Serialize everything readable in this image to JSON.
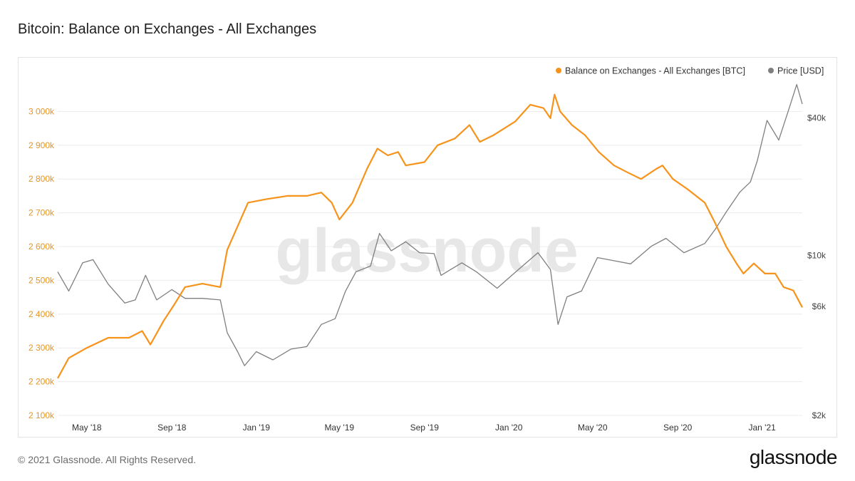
{
  "header": {
    "title": "Bitcoin: Balance on Exchanges - All Exchanges"
  },
  "footer": {
    "copyright": "© 2021 Glassnode. All Rights Reserved.",
    "logo": "glassnode"
  },
  "watermark": "glassnode",
  "colors": {
    "balance": "#f7931a",
    "price": "#7f7f7f",
    "grid": "#ececec",
    "left_axis_text": "#e8931e",
    "right_axis_text": "#444444"
  },
  "chart_data": {
    "type": "line",
    "title": "Bitcoin: Balance on Exchanges - All Exchanges",
    "legend_position": "top-right",
    "grid": true,
    "x_range": [
      "2018-03-20",
      "2021-02-28"
    ],
    "x_ticks": [
      {
        "label": "May '18",
        "date": "2018-05-01"
      },
      {
        "label": "Sep '18",
        "date": "2018-09-01"
      },
      {
        "label": "Jan '19",
        "date": "2019-01-01"
      },
      {
        "label": "May '19",
        "date": "2019-05-01"
      },
      {
        "label": "Sep '19",
        "date": "2019-09-01"
      },
      {
        "label": "Jan '20",
        "date": "2020-01-01"
      },
      {
        "label": "May '20",
        "date": "2020-05-01"
      },
      {
        "label": "Sep '20",
        "date": "2020-09-01"
      },
      {
        "label": "Jan '21",
        "date": "2021-01-01"
      }
    ],
    "y_left": {
      "range": [
        2100000,
        3100000
      ],
      "ticks": [
        {
          "label": "2 100k",
          "value": 2100000
        },
        {
          "label": "2 200k",
          "value": 2200000
        },
        {
          "label": "2 300k",
          "value": 2300000
        },
        {
          "label": "2 400k",
          "value": 2400000
        },
        {
          "label": "2 500k",
          "value": 2500000
        },
        {
          "label": "2 600k",
          "value": 2600000
        },
        {
          "label": "2 700k",
          "value": 2700000
        },
        {
          "label": "2 800k",
          "value": 2800000
        },
        {
          "label": "2 900k",
          "value": 2900000
        },
        {
          "label": "3 000k",
          "value": 3000000
        }
      ]
    },
    "y_right": {
      "scale": "log",
      "range": [
        2000,
        60000
      ],
      "ticks": [
        {
          "label": "$2k",
          "value": 2000
        },
        {
          "label": "$6k",
          "value": 6000
        },
        {
          "label": "$10k",
          "value": 10000
        },
        {
          "label": "$40k",
          "value": 40000
        }
      ]
    },
    "series": [
      {
        "name": "Balance on Exchanges - All Exchanges [BTC]",
        "axis": "left",
        "points": [
          [
            "2018-03-20",
            2210000
          ],
          [
            "2018-04-05",
            2270000
          ],
          [
            "2018-05-01",
            2300000
          ],
          [
            "2018-06-01",
            2330000
          ],
          [
            "2018-07-01",
            2330000
          ],
          [
            "2018-07-20",
            2350000
          ],
          [
            "2018-08-01",
            2310000
          ],
          [
            "2018-08-20",
            2380000
          ],
          [
            "2018-09-05",
            2430000
          ],
          [
            "2018-09-20",
            2480000
          ],
          [
            "2018-10-15",
            2490000
          ],
          [
            "2018-11-10",
            2480000
          ],
          [
            "2018-11-20",
            2590000
          ],
          [
            "2018-12-05",
            2660000
          ],
          [
            "2018-12-20",
            2730000
          ],
          [
            "2019-01-15",
            2740000
          ],
          [
            "2019-02-15",
            2750000
          ],
          [
            "2019-03-15",
            2750000
          ],
          [
            "2019-04-05",
            2760000
          ],
          [
            "2019-04-20",
            2730000
          ],
          [
            "2019-05-01",
            2680000
          ],
          [
            "2019-05-20",
            2730000
          ],
          [
            "2019-06-10",
            2830000
          ],
          [
            "2019-06-25",
            2890000
          ],
          [
            "2019-07-10",
            2870000
          ],
          [
            "2019-07-25",
            2880000
          ],
          [
            "2019-08-05",
            2840000
          ],
          [
            "2019-09-01",
            2850000
          ],
          [
            "2019-09-20",
            2900000
          ],
          [
            "2019-10-15",
            2920000
          ],
          [
            "2019-11-05",
            2960000
          ],
          [
            "2019-11-20",
            2910000
          ],
          [
            "2019-12-10",
            2930000
          ],
          [
            "2020-01-10",
            2970000
          ],
          [
            "2020-02-01",
            3020000
          ],
          [
            "2020-02-20",
            3010000
          ],
          [
            "2020-03-01",
            2980000
          ],
          [
            "2020-03-07",
            3050000
          ],
          [
            "2020-03-15",
            3000000
          ],
          [
            "2020-04-01",
            2960000
          ],
          [
            "2020-04-20",
            2930000
          ],
          [
            "2020-05-10",
            2880000
          ],
          [
            "2020-06-01",
            2840000
          ],
          [
            "2020-06-20",
            2820000
          ],
          [
            "2020-07-10",
            2800000
          ],
          [
            "2020-08-01",
            2830000
          ],
          [
            "2020-08-10",
            2840000
          ],
          [
            "2020-08-25",
            2800000
          ],
          [
            "2020-09-15",
            2770000
          ],
          [
            "2020-10-10",
            2730000
          ],
          [
            "2020-10-25",
            2670000
          ],
          [
            "2020-11-10",
            2600000
          ],
          [
            "2020-11-25",
            2550000
          ],
          [
            "2020-12-05",
            2520000
          ],
          [
            "2020-12-20",
            2550000
          ],
          [
            "2021-01-05",
            2520000
          ],
          [
            "2021-01-20",
            2520000
          ],
          [
            "2021-02-01",
            2480000
          ],
          [
            "2021-02-15",
            2470000
          ],
          [
            "2021-02-28",
            2420000
          ]
        ]
      },
      {
        "name": "Price [USD]",
        "axis": "right",
        "points": [
          [
            "2018-03-20",
            8500
          ],
          [
            "2018-04-05",
            7000
          ],
          [
            "2018-04-25",
            9300
          ],
          [
            "2018-05-10",
            9600
          ],
          [
            "2018-06-01",
            7500
          ],
          [
            "2018-06-25",
            6200
          ],
          [
            "2018-07-10",
            6400
          ],
          [
            "2018-07-25",
            8200
          ],
          [
            "2018-08-10",
            6400
          ],
          [
            "2018-09-01",
            7100
          ],
          [
            "2018-09-20",
            6500
          ],
          [
            "2018-10-15",
            6500
          ],
          [
            "2018-11-10",
            6400
          ],
          [
            "2018-11-20",
            4600
          ],
          [
            "2018-12-05",
            3800
          ],
          [
            "2018-12-15",
            3300
          ],
          [
            "2019-01-01",
            3800
          ],
          [
            "2019-01-25",
            3500
          ],
          [
            "2019-02-20",
            3900
          ],
          [
            "2019-03-15",
            4000
          ],
          [
            "2019-04-05",
            5000
          ],
          [
            "2019-04-25",
            5300
          ],
          [
            "2019-05-10",
            7000
          ],
          [
            "2019-05-25",
            8500
          ],
          [
            "2019-06-15",
            9000
          ],
          [
            "2019-06-28",
            12500
          ],
          [
            "2019-07-15",
            10500
          ],
          [
            "2019-08-05",
            11500
          ],
          [
            "2019-08-25",
            10300
          ],
          [
            "2019-09-15",
            10200
          ],
          [
            "2019-09-25",
            8200
          ],
          [
            "2019-10-25",
            9300
          ],
          [
            "2019-11-15",
            8500
          ],
          [
            "2019-12-15",
            7200
          ],
          [
            "2020-01-15",
            8700
          ],
          [
            "2020-02-12",
            10300
          ],
          [
            "2020-03-01",
            8700
          ],
          [
            "2020-03-12",
            5000
          ],
          [
            "2020-03-25",
            6600
          ],
          [
            "2020-04-15",
            7000
          ],
          [
            "2020-05-08",
            9800
          ],
          [
            "2020-06-01",
            9500
          ],
          [
            "2020-06-25",
            9200
          ],
          [
            "2020-07-25",
            11000
          ],
          [
            "2020-08-15",
            11900
          ],
          [
            "2020-09-10",
            10300
          ],
          [
            "2020-10-10",
            11300
          ],
          [
            "2020-10-25",
            13000
          ],
          [
            "2020-11-10",
            15500
          ],
          [
            "2020-11-30",
            19000
          ],
          [
            "2020-12-15",
            21000
          ],
          [
            "2020-12-25",
            26000
          ],
          [
            "2021-01-08",
            39000
          ],
          [
            "2021-01-25",
            32000
          ],
          [
            "2021-02-10",
            45000
          ],
          [
            "2021-02-20",
            56000
          ],
          [
            "2021-02-28",
            46000
          ]
        ]
      }
    ]
  }
}
